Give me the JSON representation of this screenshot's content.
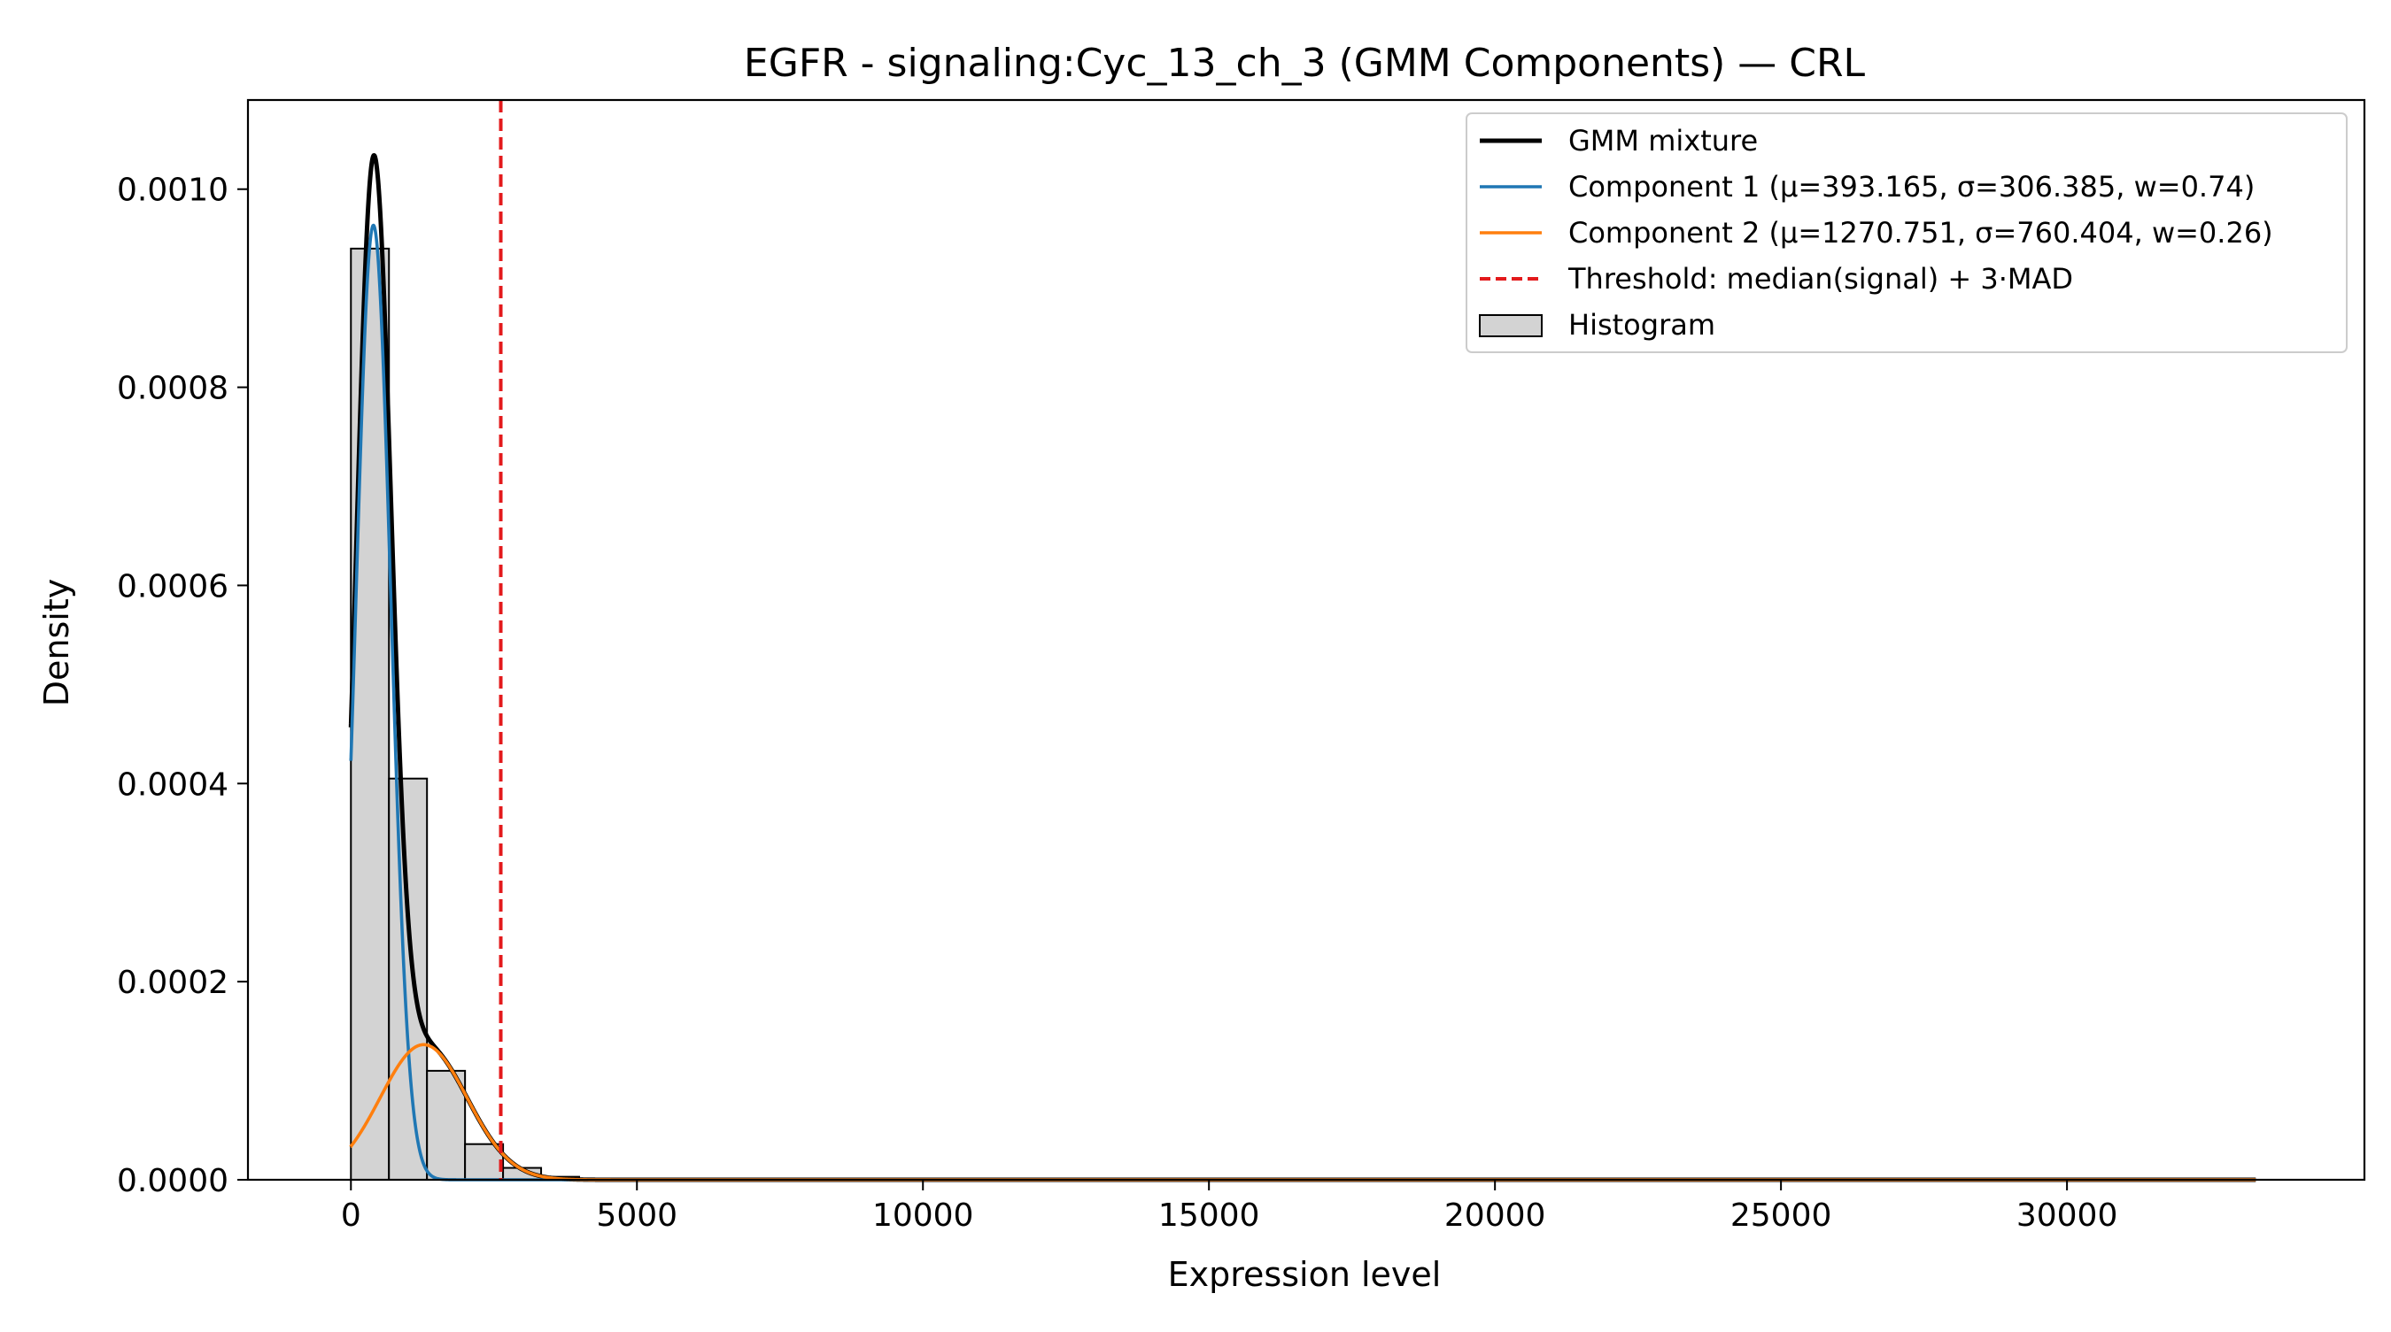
{
  "chart_data": {
    "type": "histogram",
    "title": "EGFR - signaling:Cyc_13_ch_3 (GMM Components) — CRL",
    "xlabel": "Expression level",
    "ylabel": "Density",
    "xlim": [
      -1800,
      35200
    ],
    "ylim": [
      0,
      0.00109
    ],
    "x_ticks": [
      0,
      5000,
      10000,
      15000,
      20000,
      25000,
      30000
    ],
    "x_tick_labels": [
      "0",
      "5000",
      "10000",
      "15000",
      "20000",
      "25000",
      "30000"
    ],
    "y_ticks": [
      0,
      0.0002,
      0.0004,
      0.0006,
      0.0008,
      0.001
    ],
    "y_tick_labels": [
      "0.0000",
      "0.0002",
      "0.0004",
      "0.0006",
      "0.0008",
      "0.0010"
    ],
    "grid": false,
    "legend_position": "top-right",
    "histogram": {
      "name": "Histogram",
      "color": "#d3d3d3",
      "edge_color": "#000000",
      "bin_edges": [
        0,
        665,
        1330,
        1995,
        2660,
        3325,
        3990,
        4655
      ],
      "densities": [
        0.00094,
        0.000405,
        0.00011,
        3.6e-05,
        1.2e-05,
        3e-06,
        5e-07
      ]
    },
    "series": [
      {
        "name": "GMM mixture",
        "kind": "mixture",
        "color": "#000000",
        "x_range": [
          0,
          33300
        ]
      },
      {
        "name": "Component 1 (μ=393.165, σ=306.385, w=0.74)",
        "kind": "gaussian",
        "mu": 393.165,
        "sigma": 306.385,
        "w": 0.74,
        "color": "#1f77b4",
        "x_range": [
          0,
          33300
        ]
      },
      {
        "name": "Component 2 (μ=1270.751, σ=760.404, w=0.26)",
        "kind": "gaussian",
        "mu": 1270.751,
        "sigma": 760.404,
        "w": 0.26,
        "color": "#ff7f0e",
        "x_range": [
          0,
          33300
        ]
      }
    ],
    "threshold": {
      "name": "Threshold: median(signal) + 3·MAD",
      "x": 2620,
      "color": "#e31a1c",
      "style": "dashed"
    },
    "legend_order": [
      "GMM mixture",
      "Component 1 (μ=393.165, σ=306.385, w=0.74)",
      "Component 2 (μ=1270.751, σ=760.404, w=0.26)",
      "Threshold: median(signal) + 3·MAD",
      "Histogram"
    ]
  }
}
